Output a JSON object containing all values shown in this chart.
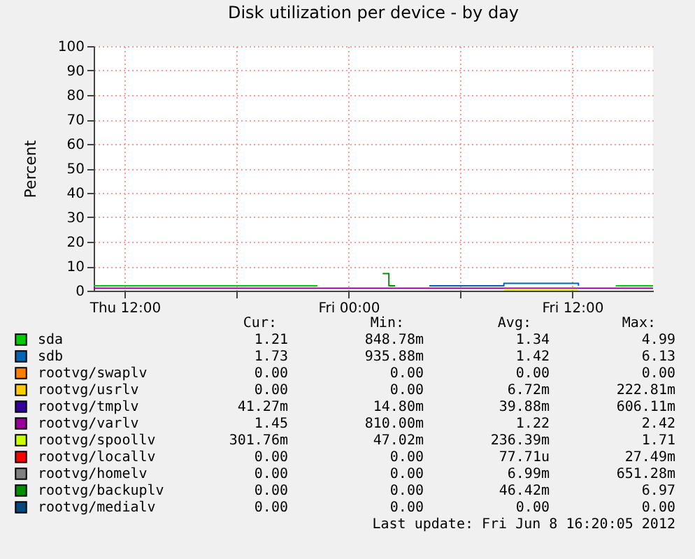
{
  "chart_data": {
    "type": "step",
    "title": "Disk utilization per device - by day",
    "ylabel": "Percent",
    "x": [
      "2012-06-07T10:20",
      "2012-06-07T12:20",
      "2012-06-07T14:20",
      "2012-06-07T16:20",
      "2012-06-07T18:20",
      "2012-06-07T20:20",
      "2012-06-07T22:20",
      "2012-06-08T00:20",
      "2012-06-08T02:20",
      "2012-06-08T04:20",
      "2012-06-08T06:20",
      "2012-06-08T08:20",
      "2012-06-08T10:20",
      "2012-06-08T12:20",
      "2012-06-08T14:20",
      "2012-06-08T16:20"
    ],
    "xlim": [
      "2012-06-07T10:20",
      "2012-06-08T16:20"
    ],
    "xticks": [
      {
        "value": "2012-06-07T12:00",
        "label": "Thu 12:00"
      },
      {
        "value": "2012-06-07T18:00",
        "label": null
      },
      {
        "value": "2012-06-08T00:00",
        "label": "Fri 00:00"
      },
      {
        "value": "2012-06-08T06:00",
        "label": null
      },
      {
        "value": "2012-06-08T12:00",
        "label": "Fri 12:00"
      }
    ],
    "ylim": [
      0,
      100
    ],
    "yticks": [
      0,
      10,
      20,
      30,
      40,
      50,
      60,
      70,
      80,
      90,
      100
    ],
    "grid": true,
    "legend": "bottom",
    "series": [
      {
        "name": "sda",
        "color": "#00cc00",
        "values": [
          2,
          2,
          2,
          2,
          2,
          2,
          2,
          null,
          null,
          null,
          null,
          null,
          null,
          null,
          2,
          2
        ]
      },
      {
        "name": "sdb",
        "color": "#0066b3",
        "values": [
          null,
          null,
          null,
          null,
          null,
          null,
          null,
          null,
          null,
          2,
          2,
          3,
          3,
          2,
          null,
          null
        ]
      },
      {
        "name": "rootvg/swaplv",
        "color": "#ff8000",
        "values": [
          null,
          null,
          null,
          null,
          null,
          null,
          null,
          null,
          null,
          null,
          null,
          null,
          null,
          null,
          null,
          null
        ]
      },
      {
        "name": "rootvg/usrlv",
        "color": "#ffcc00",
        "values": [
          null,
          null,
          null,
          null,
          null,
          null,
          null,
          null,
          null,
          null,
          null,
          null,
          null,
          null,
          null,
          null
        ]
      },
      {
        "name": "rootvg/tmplv",
        "color": "#330099",
        "values": [
          null,
          null,
          null,
          null,
          null,
          null,
          null,
          null,
          null,
          null,
          null,
          null,
          null,
          null,
          null,
          null
        ]
      },
      {
        "name": "rootvg/varlv",
        "color": "#990099",
        "values": [
          1,
          1,
          1,
          1,
          1,
          1,
          1,
          1,
          1,
          1,
          1,
          1,
          1,
          1,
          1,
          1
        ]
      },
      {
        "name": "rootvg/spoollv",
        "color": "#ccff00",
        "values": [
          null,
          null,
          null,
          null,
          null,
          null,
          null,
          null,
          null,
          null,
          null,
          0.4,
          0.4,
          0.4,
          null,
          null
        ]
      },
      {
        "name": "rootvg/locallv",
        "color": "#ff0000",
        "values": [
          null,
          null,
          null,
          null,
          null,
          null,
          null,
          null,
          null,
          null,
          null,
          null,
          null,
          null,
          null,
          null
        ]
      },
      {
        "name": "rootvg/homelv",
        "color": "#808080",
        "values": [
          null,
          null,
          null,
          null,
          null,
          null,
          null,
          null,
          null,
          null,
          null,
          null,
          null,
          null,
          null,
          null
        ]
      },
      {
        "name": "rootvg/backuplv",
        "color": "#008f00",
        "x": [
          "2012-06-08T01:50",
          "2012-06-08T02:10",
          "2012-06-08T02:30"
        ],
        "values": [
          7,
          2,
          2
        ]
      },
      {
        "name": "rootvg/medialv",
        "color": "#00487d",
        "values": [
          null,
          null,
          null,
          null,
          null,
          null,
          null,
          null,
          null,
          null,
          null,
          null,
          null,
          null,
          null,
          null
        ]
      }
    ],
    "annotations": [
      "Cur:",
      "Min:",
      "Avg:",
      "Max:",
      "1.21",
      "848.78m",
      "1.34",
      "4.99",
      "1.73",
      "935.88m",
      "1.42",
      "6.13",
      "0.00",
      "0.00",
      "0.00",
      "0.00",
      "0.00",
      "0.00",
      "6.72m",
      "222.81m",
      "41.27m",
      "14.80m",
      "39.88m",
      "606.11m",
      "1.45",
      "810.00m",
      "1.22",
      "2.42",
      "301.76m",
      "47.02m",
      "236.39m",
      "1.71",
      "0.00",
      "0.00",
      "77.71u",
      "27.49m",
      "0.00",
      "0.00",
      "6.99m",
      "651.28m",
      "0.00",
      "0.00",
      "46.42m",
      "6.97",
      "0.00",
      "0.00",
      "0.00",
      "0.00",
      "Last update:  Fri Jun  8 16:20:05 2012"
    ]
  }
}
